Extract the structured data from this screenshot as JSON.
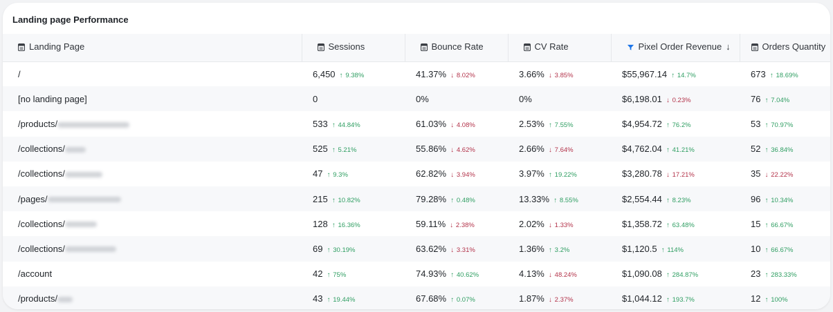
{
  "title": "Landing page Performance",
  "colors": {
    "up": "#2f9e62",
    "down": "#b3334a",
    "accent": "#1a73e8"
  },
  "columns": [
    {
      "label": "Landing Page",
      "icon": "sheet-icon"
    },
    {
      "label": "Sessions",
      "icon": "sheet-icon"
    },
    {
      "label": "Bounce Rate",
      "icon": "sheet-icon"
    },
    {
      "label": "CV Rate",
      "icon": "sheet-icon"
    },
    {
      "label": "Pixel Order Revenue",
      "icon": "pixel-logo-icon",
      "sort": "desc"
    },
    {
      "label": "Orders Quantity",
      "icon": "sheet-icon"
    }
  ],
  "rows": [
    {
      "page": "/",
      "blur": false,
      "sessions": {
        "value": "6,450",
        "delta": "9.38%",
        "dir": "up"
      },
      "bounce": {
        "value": "41.37%",
        "delta": "8.02%",
        "dir": "down"
      },
      "cv": {
        "value": "3.66%",
        "delta": "3.85%",
        "dir": "down"
      },
      "revenue": {
        "value": "$55,967.14",
        "delta": "14.7%",
        "dir": "up"
      },
      "orders": {
        "value": "673",
        "delta": "18.69%",
        "dir": "up"
      }
    },
    {
      "page": "[no landing page]",
      "blur": false,
      "sessions": {
        "value": "0",
        "delta": "",
        "dir": ""
      },
      "bounce": {
        "value": "0%",
        "delta": "",
        "dir": ""
      },
      "cv": {
        "value": "0%",
        "delta": "",
        "dir": ""
      },
      "revenue": {
        "value": "$6,198.01",
        "delta": "0.23%",
        "dir": "down"
      },
      "orders": {
        "value": "76",
        "delta": "7.04%",
        "dir": "up"
      }
    },
    {
      "page": "/products/",
      "blur": true,
      "blurw": 104,
      "sessions": {
        "value": "533",
        "delta": "44.84%",
        "dir": "up"
      },
      "bounce": {
        "value": "61.03%",
        "delta": "4.08%",
        "dir": "down"
      },
      "cv": {
        "value": "2.53%",
        "delta": "7.55%",
        "dir": "up"
      },
      "revenue": {
        "value": "$4,954.72",
        "delta": "76.2%",
        "dir": "up"
      },
      "orders": {
        "value": "53",
        "delta": "70.97%",
        "dir": "up"
      }
    },
    {
      "page": "/collections/",
      "blur": true,
      "blurw": 30,
      "sessions": {
        "value": "525",
        "delta": "5.21%",
        "dir": "up"
      },
      "bounce": {
        "value": "55.86%",
        "delta": "4.62%",
        "dir": "down"
      },
      "cv": {
        "value": "2.66%",
        "delta": "7.64%",
        "dir": "down"
      },
      "revenue": {
        "value": "$4,762.04",
        "delta": "41.21%",
        "dir": "up"
      },
      "orders": {
        "value": "52",
        "delta": "36.84%",
        "dir": "up"
      }
    },
    {
      "page": "/collections/",
      "blur": true,
      "blurw": 54,
      "sessions": {
        "value": "47",
        "delta": "9.3%",
        "dir": "up"
      },
      "bounce": {
        "value": "62.82%",
        "delta": "3.94%",
        "dir": "down"
      },
      "cv": {
        "value": "3.97%",
        "delta": "19.22%",
        "dir": "up"
      },
      "revenue": {
        "value": "$3,280.78",
        "delta": "17.21%",
        "dir": "down"
      },
      "orders": {
        "value": "35",
        "delta": "22.22%",
        "dir": "down"
      }
    },
    {
      "page": "/pages/",
      "blur": true,
      "blurw": 106,
      "sessions": {
        "value": "215",
        "delta": "10.82%",
        "dir": "up"
      },
      "bounce": {
        "value": "79.28%",
        "delta": "0.48%",
        "dir": "up"
      },
      "cv": {
        "value": "13.33%",
        "delta": "8.55%",
        "dir": "up"
      },
      "revenue": {
        "value": "$2,554.44",
        "delta": "8.23%",
        "dir": "up"
      },
      "orders": {
        "value": "96",
        "delta": "10.34%",
        "dir": "up"
      }
    },
    {
      "page": "/collections/",
      "blur": true,
      "blurw": 46,
      "sessions": {
        "value": "128",
        "delta": "16.36%",
        "dir": "up"
      },
      "bounce": {
        "value": "59.11%",
        "delta": "2.38%",
        "dir": "down"
      },
      "cv": {
        "value": "2.02%",
        "delta": "1.33%",
        "dir": "down"
      },
      "revenue": {
        "value": "$1,358.72",
        "delta": "63.48%",
        "dir": "up"
      },
      "orders": {
        "value": "15",
        "delta": "66.67%",
        "dir": "up"
      }
    },
    {
      "page": "/collections/",
      "blur": true,
      "blurw": 74,
      "sessions": {
        "value": "69",
        "delta": "30.19%",
        "dir": "up"
      },
      "bounce": {
        "value": "63.62%",
        "delta": "3.31%",
        "dir": "down"
      },
      "cv": {
        "value": "1.36%",
        "delta": "3.2%",
        "dir": "up"
      },
      "revenue": {
        "value": "$1,120.5",
        "delta": "114%",
        "dir": "up"
      },
      "orders": {
        "value": "10",
        "delta": "66.67%",
        "dir": "up"
      }
    },
    {
      "page": "/account",
      "blur": false,
      "sessions": {
        "value": "42",
        "delta": "75%",
        "dir": "up"
      },
      "bounce": {
        "value": "74.93%",
        "delta": "40.62%",
        "dir": "up"
      },
      "cv": {
        "value": "4.13%",
        "delta": "48.24%",
        "dir": "down"
      },
      "revenue": {
        "value": "$1,090.08",
        "delta": "284.87%",
        "dir": "up"
      },
      "orders": {
        "value": "23",
        "delta": "283.33%",
        "dir": "up"
      }
    },
    {
      "page": "/products/",
      "blur": true,
      "blurw": 22,
      "sessions": {
        "value": "43",
        "delta": "19.44%",
        "dir": "up"
      },
      "bounce": {
        "value": "67.68%",
        "delta": "0.07%",
        "dir": "up"
      },
      "cv": {
        "value": "1.87%",
        "delta": "2.37%",
        "dir": "down"
      },
      "revenue": {
        "value": "$1,044.12",
        "delta": "193.7%",
        "dir": "up"
      },
      "orders": {
        "value": "12",
        "delta": "100%",
        "dir": "up"
      }
    }
  ]
}
